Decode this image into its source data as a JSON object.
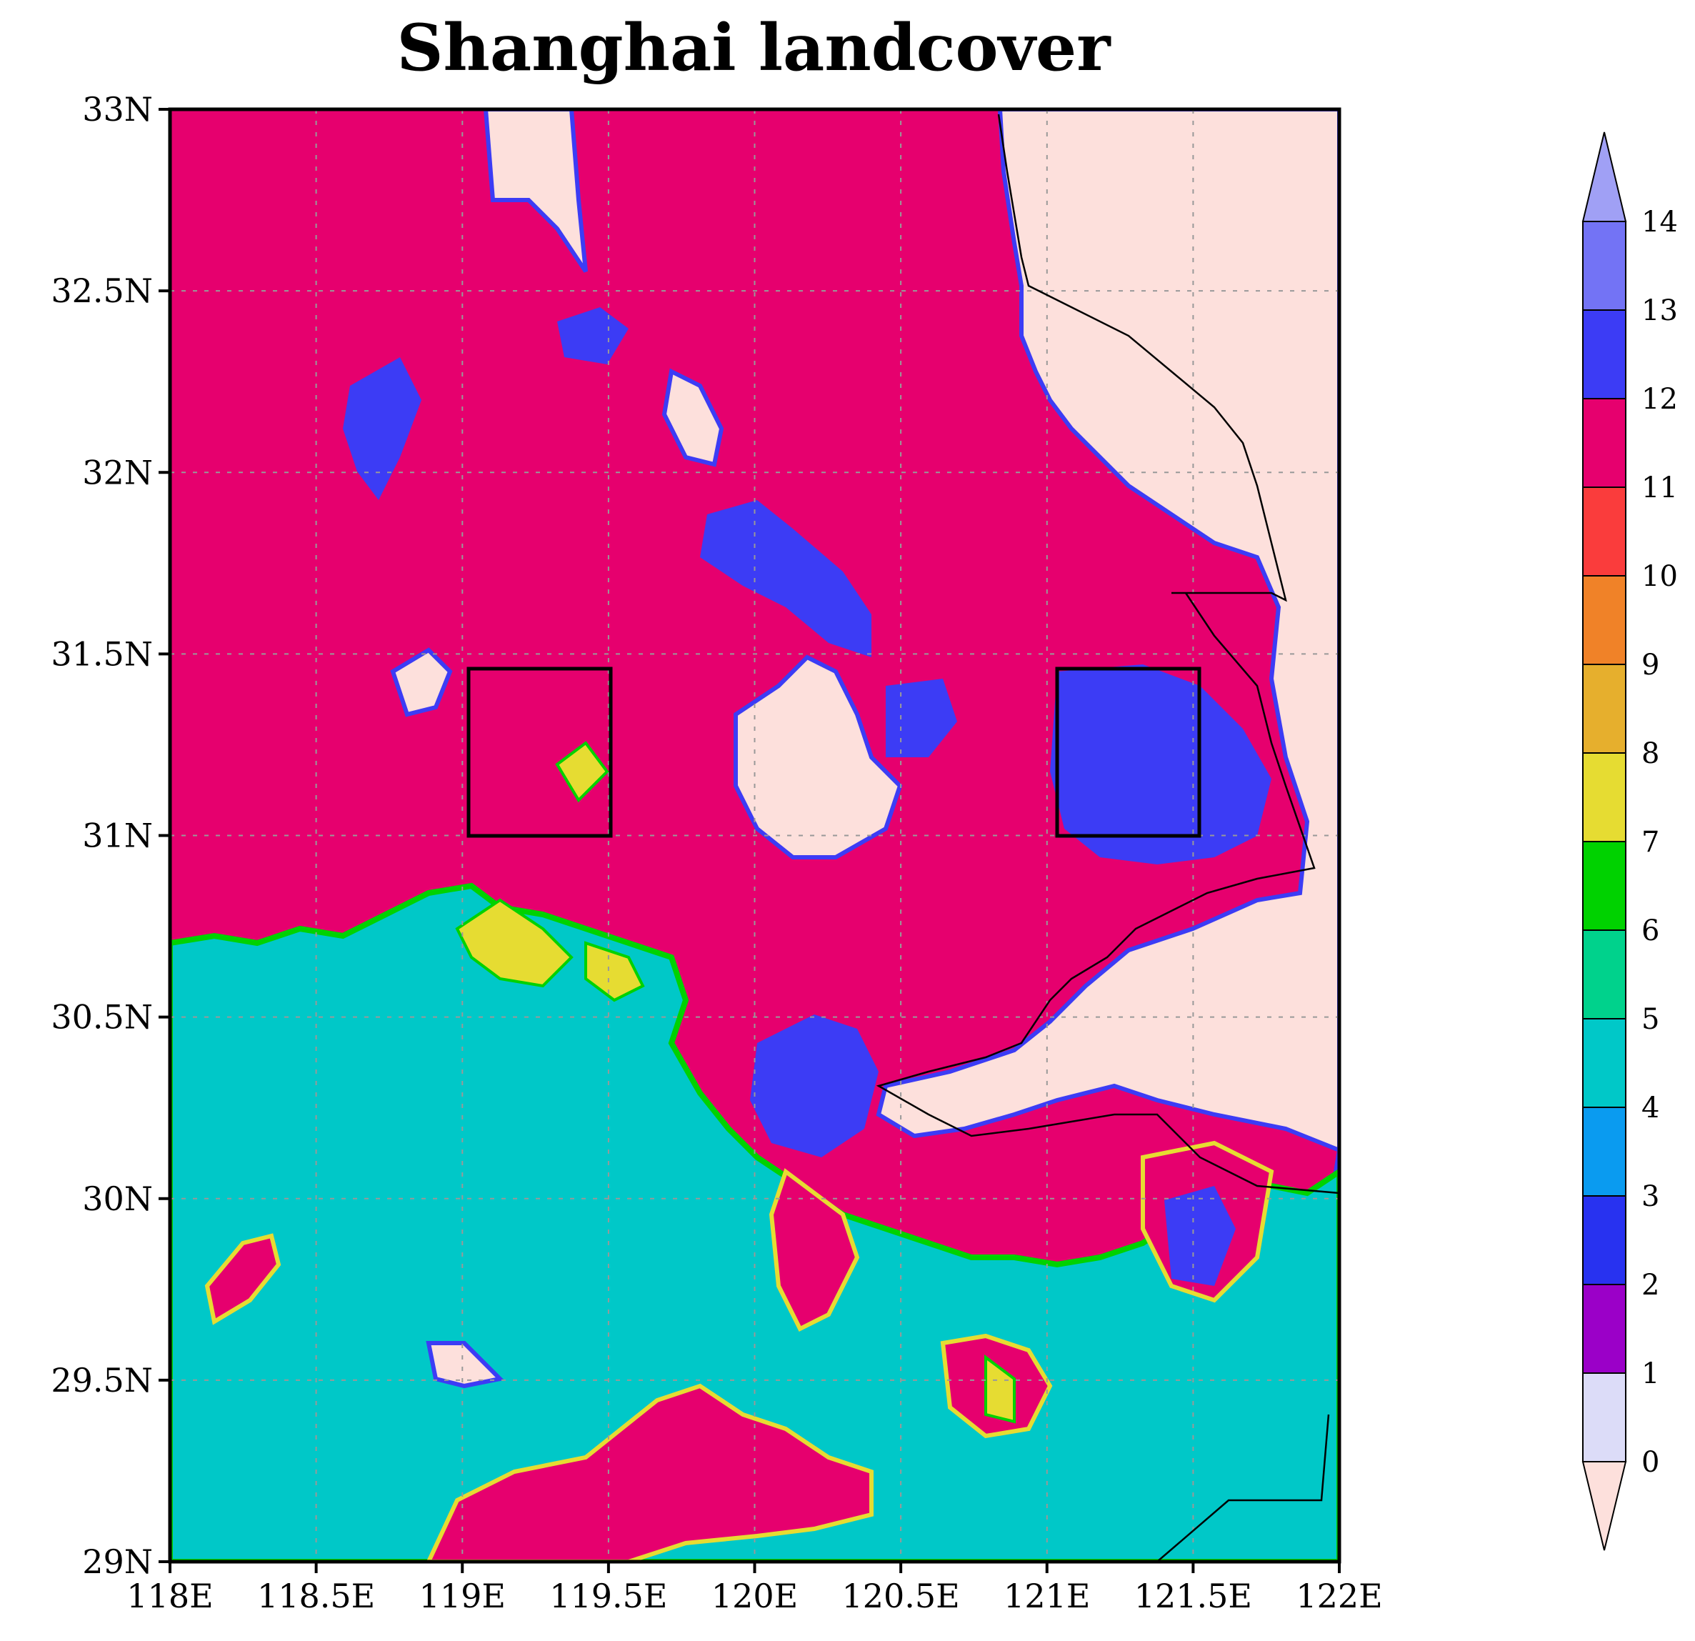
{
  "title": "Shanghai landcover",
  "chart_data": {
    "type": "heatmap",
    "title": "Shanghai landcover",
    "x_ticks": [
      "118E",
      "118.5E",
      "119E",
      "119.5E",
      "120E",
      "120.5E",
      "121E",
      "121.5E",
      "122E"
    ],
    "y_ticks": [
      "33N",
      "32.5N",
      "32N",
      "31.5N",
      "31N",
      "30.5N",
      "30N",
      "29.5N",
      "29N"
    ],
    "xlim": [
      118,
      122
    ],
    "ylim": [
      29,
      33
    ],
    "grid": true,
    "colorbar": {
      "position": "right",
      "extend": "both",
      "levels": [
        "0",
        "1",
        "2",
        "3",
        "4",
        "5",
        "6",
        "7",
        "8",
        "9",
        "10",
        "11",
        "12",
        "13",
        "14"
      ],
      "colors": [
        "#fde0dc",
        "#dcdcf8",
        "#9b00c8",
        "#2832f0",
        "#0a9bf0",
        "#00c8c8",
        "#00d28c",
        "#00d200",
        "#e6dc32",
        "#e6af2d",
        "#f08228",
        "#fa3c3c",
        "#e6006e",
        "#3c3cf5",
        "#7373f5",
        "#a0a0f5"
      ]
    },
    "boxes": [
      {
        "lon": [
          119.02,
          119.5
        ],
        "lat": [
          31.0,
          31.46
        ]
      },
      {
        "lon": [
          121.03,
          121.51
        ],
        "lat": [
          31.0,
          31.46
        ]
      }
    ]
  }
}
